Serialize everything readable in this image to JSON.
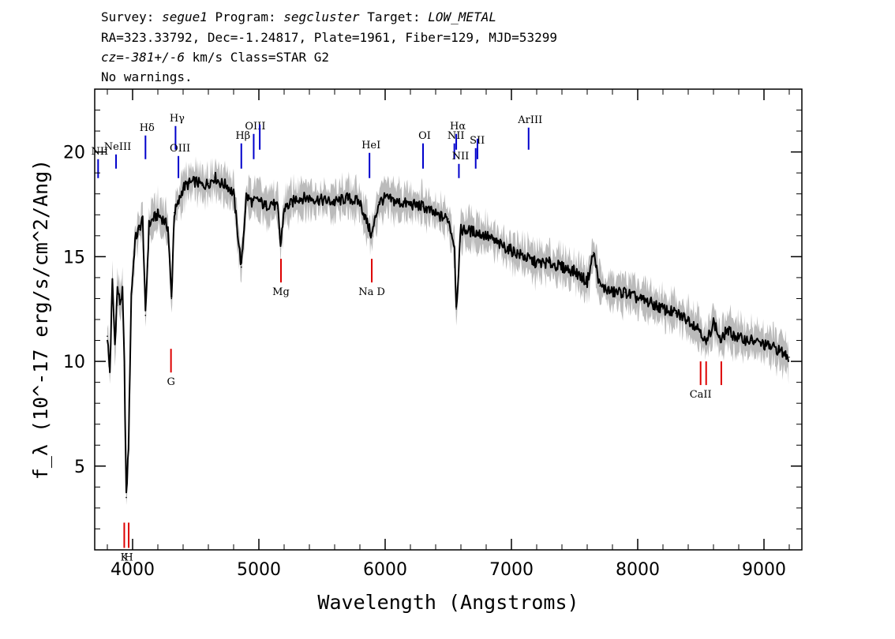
{
  "header": {
    "survey_label": "Survey:",
    "survey": "segue1",
    "program_label": "Program:",
    "program": "segcluster",
    "target_label": "Target:",
    "target": "LOW_METAL",
    "line2": "RA=323.33792, Dec=-1.24817, Plate=1961, Fiber=129, MJD=53299",
    "cz_label": "cz=",
    "cz_value": "-381+/-6",
    "cz_rest": " km/s Class=STAR G2",
    "line4": "No warnings."
  },
  "chart_data": {
    "type": "line",
    "xlabel": "Wavelength (Angstroms)",
    "ylabel": "f_λ (10^-17 erg/s/cm^2/Ang)",
    "xlim": [
      3700,
      9300
    ],
    "ylim": [
      1,
      23
    ],
    "x_ticks": [
      4000,
      5000,
      6000,
      7000,
      8000,
      9000
    ],
    "y_ticks": [
      5,
      10,
      15,
      20
    ],
    "x_tick_labels": [
      "4000",
      "5000",
      "6000",
      "7000",
      "8000",
      "9000"
    ],
    "y_tick_labels": [
      "5",
      "10",
      "15",
      "20"
    ],
    "grid": false,
    "series": [
      {
        "color": "#000000",
        "x": [
          3800,
          3820,
          3840,
          3860,
          3880,
          3900,
          3920,
          3935,
          3950,
          3968,
          3990,
          4020,
          4050,
          4080,
          4102,
          4130,
          4160,
          4200,
          4240,
          4280,
          4308,
          4330,
          4360,
          4400,
          4450,
          4500,
          4550,
          4600,
          4650,
          4700,
          4750,
          4800,
          4861,
          4900,
          4950,
          5000,
          5050,
          5100,
          5150,
          5172,
          5200,
          5250,
          5300,
          5400,
          5500,
          5600,
          5700,
          5800,
          5893,
          5950,
          6000,
          6100,
          6200,
          6300,
          6400,
          6500,
          6550,
          6563,
          6600,
          6700,
          6800,
          6900,
          7000,
          7100,
          7200,
          7300,
          7400,
          7500,
          7600,
          7650,
          7700,
          7800,
          7900,
          8000,
          8100,
          8200,
          8300,
          8400,
          8498,
          8542,
          8600,
          8662,
          8700,
          8800,
          8900,
          9000,
          9100,
          9200
        ],
        "y": [
          11.2,
          9.5,
          13.8,
          10.8,
          13.5,
          12.8,
          13.3,
          9.8,
          3.5,
          6.0,
          13.2,
          15.8,
          16.3,
          16.8,
          12.2,
          16.5,
          16.8,
          17.0,
          16.8,
          16.4,
          13.0,
          17.1,
          17.5,
          18.3,
          18.5,
          18.6,
          18.4,
          18.5,
          18.8,
          18.5,
          18.4,
          18.0,
          14.5,
          17.9,
          17.6,
          17.7,
          17.4,
          17.6,
          17.3,
          15.5,
          17.3,
          17.5,
          17.8,
          17.8,
          17.7,
          17.6,
          17.8,
          17.6,
          16.0,
          17.6,
          17.8,
          17.6,
          17.5,
          17.4,
          17.0,
          16.8,
          15.5,
          12.5,
          16.3,
          16.2,
          16.0,
          15.6,
          15.3,
          15.0,
          14.7,
          14.7,
          14.5,
          14.3,
          13.8,
          15.2,
          13.6,
          13.3,
          13.3,
          13.0,
          12.8,
          12.5,
          12.3,
          12.0,
          11.5,
          10.8,
          11.9,
          10.9,
          11.5,
          11.1,
          11.0,
          10.8,
          10.6,
          10.2
        ]
      }
    ],
    "emission_lines": [
      {
        "label": "NII",
        "x": 3727
      },
      {
        "label": "NeIII",
        "x": 3869
      },
      {
        "label": "Hδ",
        "x": 4102
      },
      {
        "label": "Hγ",
        "x": 4340
      },
      {
        "label": "OIII",
        "x": 4363
      },
      {
        "label": "Hβ",
        "x": 4861
      },
      {
        "label": "OIII",
        "x": 4959
      },
      {
        "label": "",
        "x": 5007
      },
      {
        "label": "HeI",
        "x": 5876
      },
      {
        "label": "OI",
        "x": 6300
      },
      {
        "label": "NII",
        "x": 6548
      },
      {
        "label": "Hα",
        "x": 6563
      },
      {
        "label": "NII",
        "x": 6584
      },
      {
        "label": "SII",
        "x": 6717
      },
      {
        "label": "",
        "x": 6731
      },
      {
        "label": "ArIII",
        "x": 7136
      }
    ],
    "absorption_lines": [
      {
        "label": "K",
        "x": 3934
      },
      {
        "label": "H",
        "x": 3969
      },
      {
        "label": "G",
        "x": 4304
      },
      {
        "label": "Mg",
        "x": 5175
      },
      {
        "label": "Na D",
        "x": 5894
      },
      {
        "label": "CaII",
        "x": 8498
      },
      {
        "label": "",
        "x": 8542
      },
      {
        "label": "",
        "x": 8662
      }
    ],
    "colors": {
      "spectrum": "#000000",
      "spectrum_error": "#bbbbbb",
      "emission": "#0000cc",
      "absorption": "#dd0000"
    }
  }
}
